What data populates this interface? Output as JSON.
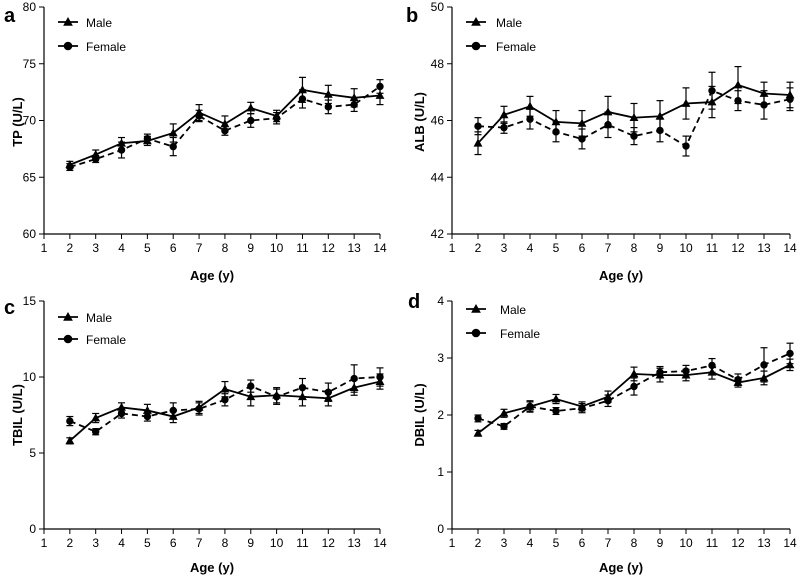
{
  "chart_data": [
    {
      "panel": "a",
      "type": "line",
      "ylabel": "TP (U/L)",
      "xlabel": "Age (y)",
      "xlim": [
        1,
        14
      ],
      "ylim": [
        60,
        80
      ],
      "xticks": [
        "1",
        "2",
        "3",
        "4",
        "5",
        "6",
        "7",
        "8",
        "9",
        "10",
        "11",
        "12",
        "13",
        "14"
      ],
      "yticks": [
        "60",
        "65",
        "70",
        "75",
        "80"
      ],
      "x": [
        2,
        3,
        4,
        5,
        6,
        7,
        8,
        9,
        10,
        11,
        12,
        13,
        14
      ],
      "legend": [
        {
          "name": "Male",
          "marker": "triangle",
          "line": "solid"
        },
        {
          "name": "Female",
          "marker": "circle",
          "line": "dashed"
        }
      ],
      "series": [
        {
          "name": "Male",
          "values": [
            66.1,
            67.0,
            68.0,
            68.2,
            68.9,
            70.7,
            69.7,
            71.1,
            70.4,
            72.7,
            72.3,
            72.0,
            72.2
          ],
          "errors": [
            0.3,
            0.4,
            0.5,
            0.4,
            0.8,
            0.7,
            0.7,
            0.5,
            0.5,
            1.1,
            0.8,
            0.8,
            0.8
          ]
        },
        {
          "name": "Female",
          "values": [
            65.9,
            66.6,
            67.4,
            68.4,
            67.7,
            70.4,
            69.1,
            70.0,
            70.2,
            71.9,
            71.2,
            71.4,
            73.0
          ],
          "errors": [
            0.3,
            0.3,
            0.7,
            0.4,
            0.8,
            0.5,
            0.4,
            0.6,
            0.5,
            0.8,
            0.6,
            0.6,
            0.6
          ]
        }
      ]
    },
    {
      "panel": "b",
      "type": "line",
      "ylabel": "ALB (U/L)",
      "xlabel": "Age (y)",
      "xlim": [
        1,
        14
      ],
      "ylim": [
        42,
        50
      ],
      "xticks": [
        "1",
        "2",
        "3",
        "4",
        "5",
        "6",
        "7",
        "8",
        "9",
        "10",
        "11",
        "12",
        "13",
        "14"
      ],
      "yticks": [
        "42",
        "44",
        "46",
        "48",
        "50"
      ],
      "x": [
        2,
        3,
        4,
        5,
        6,
        7,
        8,
        9,
        10,
        11,
        12,
        13,
        14
      ],
      "legend": [
        {
          "name": "Male",
          "marker": "triangle",
          "line": "solid"
        },
        {
          "name": "Female",
          "marker": "circle",
          "line": "dashed"
        }
      ],
      "series": [
        {
          "name": "Male",
          "values": [
            45.2,
            46.2,
            46.5,
            45.95,
            45.9,
            46.3,
            46.1,
            46.15,
            46.6,
            46.65,
            47.25,
            46.95,
            46.9
          ],
          "errors": [
            0.4,
            0.3,
            0.35,
            0.4,
            0.45,
            0.55,
            0.5,
            0.55,
            0.55,
            0.55,
            0.65,
            0.4,
            0.45
          ]
        },
        {
          "name": "Female",
          "values": [
            45.8,
            45.75,
            46.05,
            45.6,
            45.35,
            45.85,
            45.45,
            45.65,
            45.1,
            47.05,
            46.7,
            46.55,
            46.75
          ],
          "errors": [
            0.3,
            0.2,
            0.35,
            0.35,
            0.35,
            0.45,
            0.3,
            0.4,
            0.35,
            0.65,
            0.35,
            0.5,
            0.4
          ]
        }
      ]
    },
    {
      "panel": "c",
      "type": "line",
      "ylabel": "TBIL (U/L)",
      "xlabel": "Age (y)",
      "xlim": [
        1,
        14
      ],
      "ylim": [
        0,
        15
      ],
      "xticks": [
        "1",
        "2",
        "3",
        "4",
        "5",
        "6",
        "7",
        "8",
        "9",
        "10",
        "11",
        "12",
        "13",
        "14"
      ],
      "yticks": [
        "0",
        "5",
        "10",
        "15"
      ],
      "x": [
        2,
        3,
        4,
        5,
        6,
        7,
        8,
        9,
        10,
        11,
        12,
        13,
        14
      ],
      "legend": [
        {
          "name": "Male",
          "marker": "triangle",
          "line": "solid"
        },
        {
          "name": "Female",
          "marker": "circle",
          "line": "dashed"
        }
      ],
      "series": [
        {
          "name": "Male",
          "values": [
            5.8,
            7.3,
            8.0,
            7.8,
            7.4,
            8.0,
            9.2,
            8.7,
            8.8,
            8.7,
            8.6,
            9.3,
            9.7
          ],
          "errors": [
            0.2,
            0.3,
            0.3,
            0.4,
            0.4,
            0.4,
            0.5,
            0.6,
            0.5,
            0.6,
            0.5,
            0.5,
            0.5
          ]
        },
        {
          "name": "Female",
          "values": [
            7.1,
            6.4,
            7.6,
            7.4,
            7.8,
            7.9,
            8.5,
            9.4,
            8.7,
            9.3,
            9.0,
            9.9,
            10.0
          ],
          "errors": [
            0.3,
            0.2,
            0.3,
            0.3,
            0.5,
            0.4,
            0.4,
            0.4,
            0.5,
            0.6,
            0.6,
            0.9,
            0.6
          ]
        }
      ]
    },
    {
      "panel": "d",
      "type": "line",
      "ylabel": "DBIL  (U/L)",
      "xlabel": "Age (y)",
      "xlim": [
        1,
        14
      ],
      "ylim": [
        0,
        4
      ],
      "xticks": [
        "1",
        "2",
        "3",
        "4",
        "5",
        "6",
        "7",
        "8",
        "9",
        "10",
        "11",
        "12",
        "13",
        "14"
      ],
      "yticks": [
        "0",
        "1",
        "2",
        "3",
        "4"
      ],
      "x": [
        2,
        3,
        4,
        5,
        6,
        7,
        8,
        9,
        10,
        11,
        12,
        13,
        14
      ],
      "legend": [
        {
          "name": "Male",
          "marker": "triangle",
          "line": "solid"
        },
        {
          "name": "Female",
          "marker": "circle",
          "line": "dashed"
        }
      ],
      "series": [
        {
          "name": "Male",
          "values": [
            1.68,
            2.03,
            2.15,
            2.28,
            2.15,
            2.32,
            2.72,
            2.7,
            2.7,
            2.75,
            2.57,
            2.65,
            2.88
          ],
          "errors": [
            0.05,
            0.07,
            0.08,
            0.08,
            0.08,
            0.1,
            0.12,
            0.12,
            0.1,
            0.12,
            0.08,
            0.12,
            0.1
          ]
        },
        {
          "name": "Female",
          "values": [
            1.94,
            1.8,
            2.15,
            2.07,
            2.12,
            2.25,
            2.5,
            2.75,
            2.77,
            2.87,
            2.62,
            2.88,
            3.08
          ],
          "errors": [
            0.06,
            0.05,
            0.1,
            0.06,
            0.08,
            0.1,
            0.15,
            0.1,
            0.1,
            0.12,
            0.1,
            0.3,
            0.18
          ]
        }
      ]
    }
  ]
}
